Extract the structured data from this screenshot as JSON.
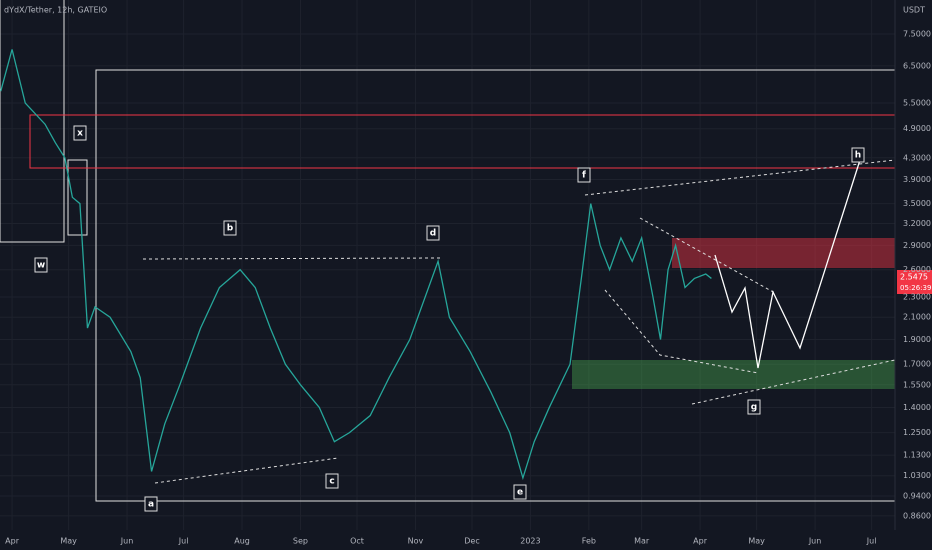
{
  "chart_data": {
    "type": "line",
    "title": "dYdX/Tether, 12h, GATEIO",
    "y_axis_label": "USDT",
    "log_scale": true,
    "last_price_label": "2.5475",
    "countdown_label": "05:26:39",
    "annotations": [
      "w",
      "x",
      "a",
      "b",
      "c",
      "d",
      "e",
      "f",
      "g",
      "h"
    ],
    "xlim": [
      -6.4,
      468.4
    ],
    "xticks": [
      {
        "value": 0,
        "label": "Apr"
      },
      {
        "value": 30,
        "label": "May"
      },
      {
        "value": 61,
        "label": "Jun"
      },
      {
        "value": 91,
        "label": "Jul"
      },
      {
        "value": 122,
        "label": "Aug"
      },
      {
        "value": 153,
        "label": "Sep"
      },
      {
        "value": 183,
        "label": "Oct"
      },
      {
        "value": 214,
        "label": "Nov"
      },
      {
        "value": 244,
        "label": "Dec"
      },
      {
        "value": 275,
        "label": "2023"
      },
      {
        "value": 306,
        "label": "Feb"
      },
      {
        "value": 334,
        "label": "Mar"
      },
      {
        "value": 365,
        "label": "Apr"
      },
      {
        "value": 395,
        "label": "May"
      },
      {
        "value": 426,
        "label": "Jun"
      },
      {
        "value": 456,
        "label": "Jul"
      }
    ],
    "ylim": [
      0.807,
      8.74
    ],
    "yticks": [
      {
        "value": 7.5,
        "label": "7.5000"
      },
      {
        "value": 6.5,
        "label": "6.5000"
      },
      {
        "value": 5.5,
        "label": "5.5000"
      },
      {
        "value": 4.9,
        "label": "4.9000"
      },
      {
        "value": 4.3,
        "label": "4.3000"
      },
      {
        "value": 3.9,
        "label": "3.9000"
      },
      {
        "value": 3.5,
        "label": "3.5000"
      },
      {
        "value": 3.2,
        "label": "3.2000"
      },
      {
        "value": 2.9,
        "label": "2.9000"
      },
      {
        "value": 2.6,
        "label": "2.6000"
      },
      {
        "value": 2.3,
        "label": "2.3000"
      },
      {
        "value": 2.1,
        "label": "2.1000"
      },
      {
        "value": 1.9,
        "label": "1.9000"
      },
      {
        "value": 1.7,
        "label": "1.7000"
      },
      {
        "value": 1.55,
        "label": "1.5500"
      },
      {
        "value": 1.4,
        "label": "1.4000"
      },
      {
        "value": 1.25,
        "label": "1.2500"
      },
      {
        "value": 1.13,
        "label": "1.1300"
      },
      {
        "value": 1.03,
        "label": "1.0300"
      },
      {
        "value": 0.94,
        "label": "0.9400"
      },
      {
        "value": 0.86,
        "label": "0.8600"
      }
    ],
    "x": [
      -6,
      0,
      7,
      17.5,
      23,
      28,
      32,
      36,
      40,
      44,
      52,
      63,
      68,
      74,
      81,
      89,
      100,
      110,
      121,
      129,
      137,
      145,
      153,
      163,
      171,
      179,
      190,
      200,
      211,
      226,
      232,
      243,
      254,
      264,
      271,
      277,
      285,
      296,
      302,
      307,
      312,
      317,
      323,
      329,
      334,
      340,
      344,
      348,
      352,
      357,
      362,
      368,
      371
    ],
    "values": [
      5.8,
      7.0,
      5.5,
      5.0,
      4.6,
      4.3,
      3.6,
      3.5,
      2.0,
      2.2,
      2.1,
      1.8,
      1.6,
      1.05,
      1.3,
      1.55,
      2.0,
      2.4,
      2.6,
      2.4,
      2.0,
      1.7,
      1.55,
      1.4,
      1.2,
      1.25,
      1.35,
      1.6,
      1.9,
      2.7,
      2.1,
      1.8,
      1.5,
      1.25,
      1.02,
      1.2,
      1.4,
      1.7,
      2.5,
      3.5,
      2.9,
      2.6,
      3.0,
      2.7,
      3.0,
      2.3,
      1.9,
      2.6,
      2.9,
      2.4,
      2.5,
      2.55,
      2.5
    ],
    "color": "#26a69a"
  }
}
